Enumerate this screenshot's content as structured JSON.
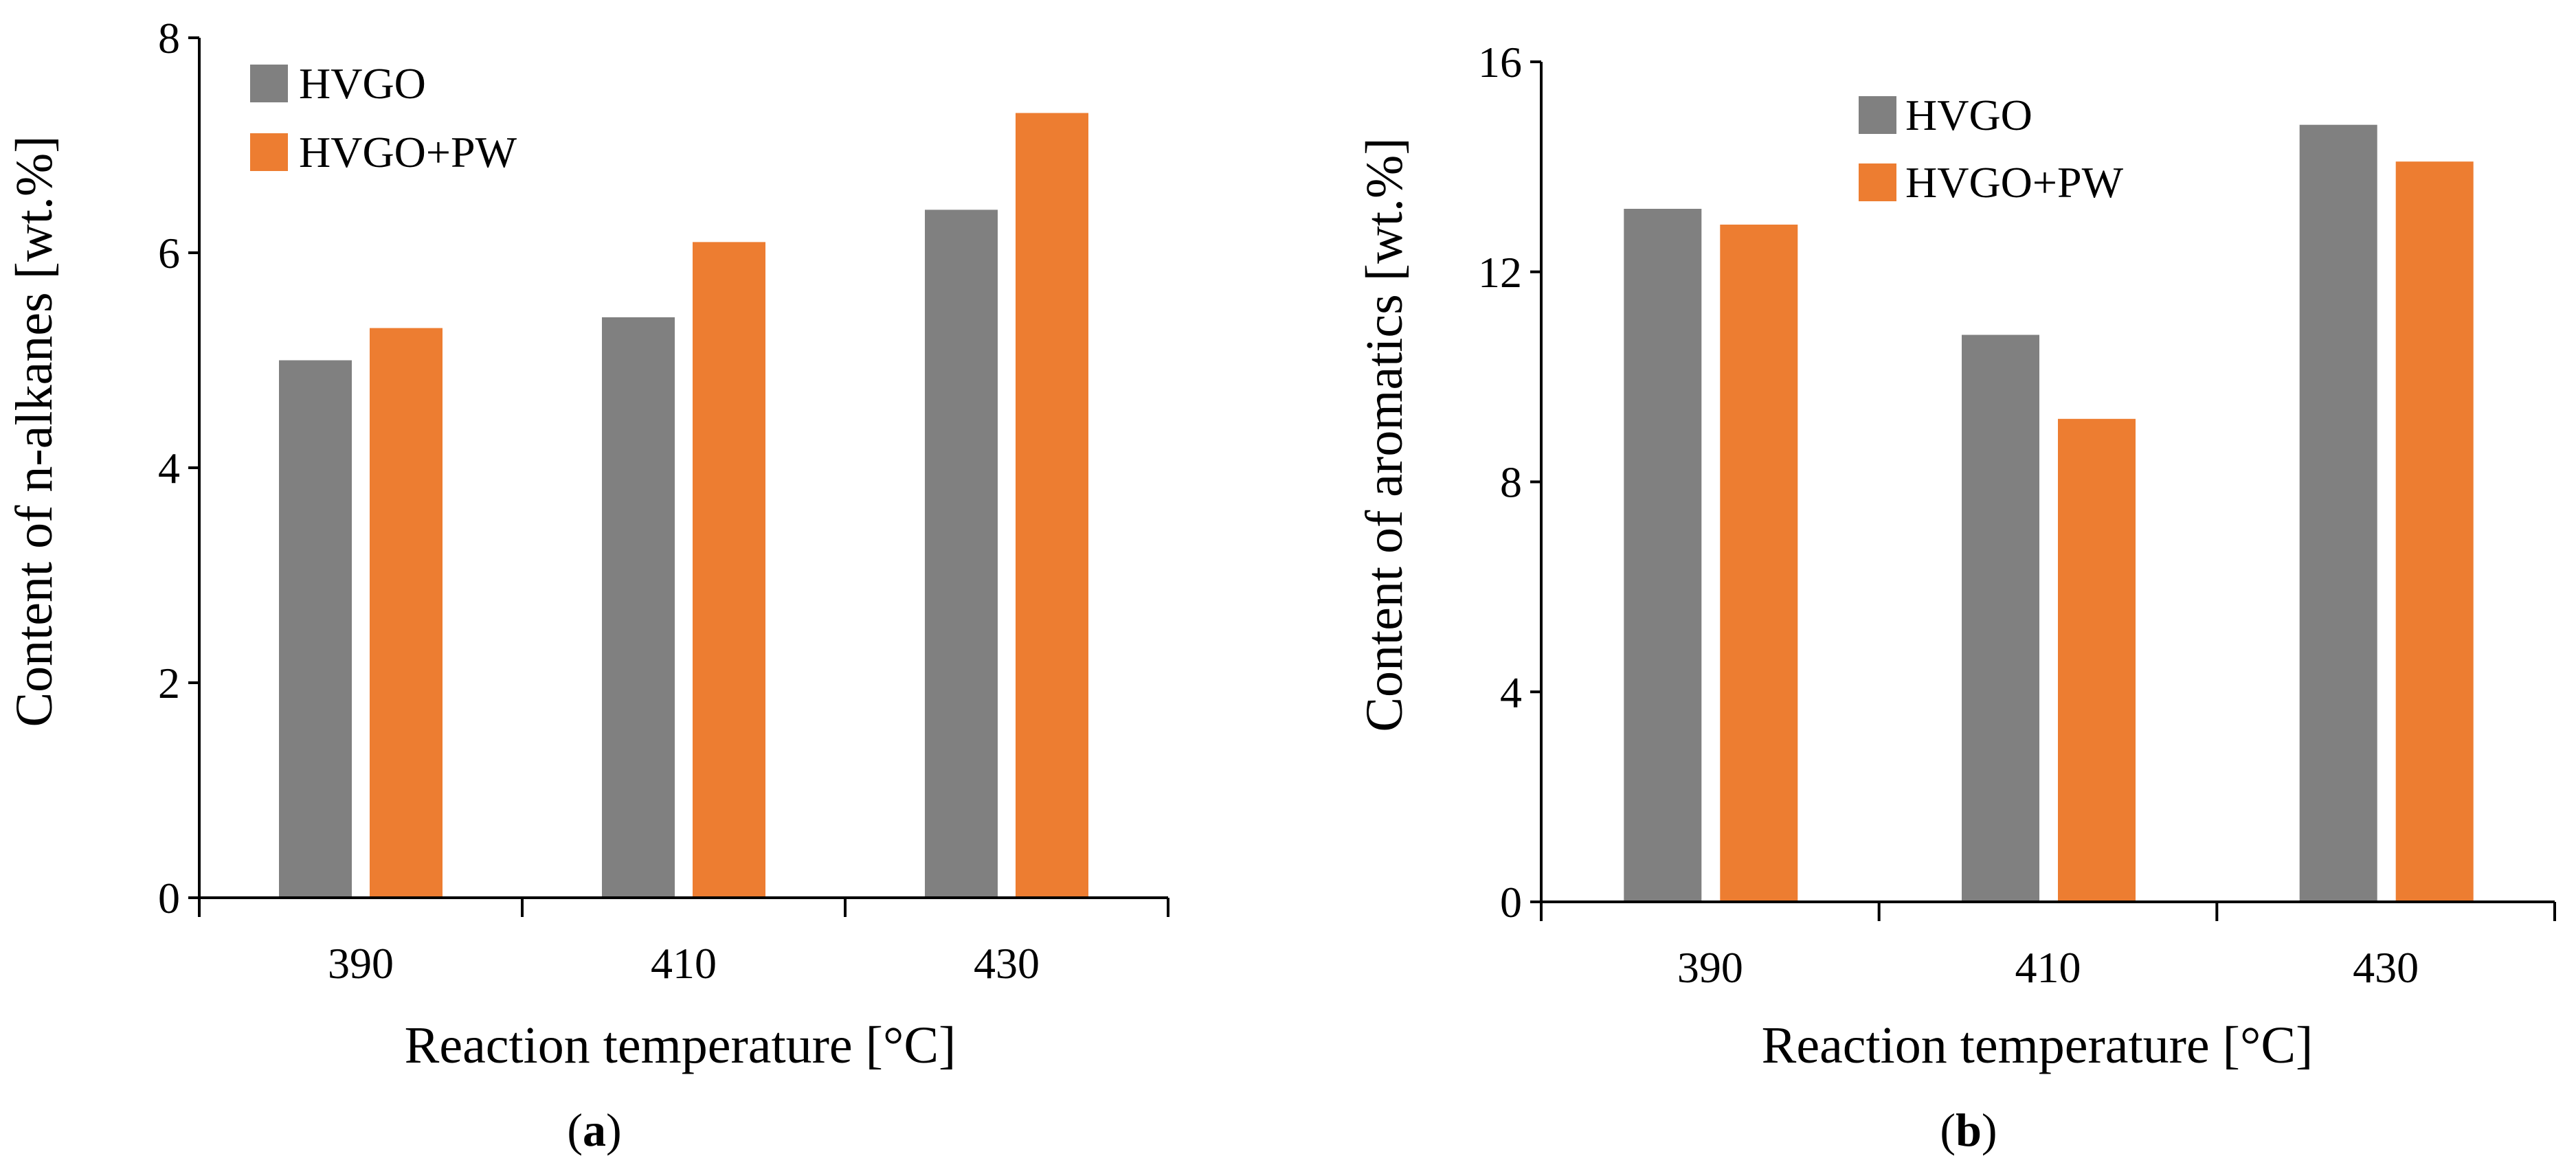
{
  "chart_data": [
    {
      "type": "bar",
      "panel_label": "(a)",
      "panel_letter": "a",
      "categories": [
        "390",
        "410",
        "430"
      ],
      "series": [
        {
          "name": "HVGO",
          "values": [
            5.0,
            5.4,
            6.4
          ],
          "color": "#808080"
        },
        {
          "name": "HVGO+PW",
          "values": [
            5.3,
            6.1,
            7.3
          ],
          "color": "#ED7D31"
        }
      ],
      "title": "",
      "xlabel": "Reaction temperature [°C]",
      "ylabel": "Content of n-alkanes [wt.%]",
      "ylim": [
        0,
        8
      ],
      "yticks": [
        0,
        2,
        4,
        6,
        8
      ],
      "grid": false,
      "legend_position": "top-left"
    },
    {
      "type": "bar",
      "panel_label": "(b)",
      "panel_letter": "b",
      "categories": [
        "390",
        "410",
        "430"
      ],
      "series": [
        {
          "name": "HVGO",
          "values": [
            13.2,
            10.8,
            14.8
          ],
          "color": "#808080"
        },
        {
          "name": "HVGO+PW",
          "values": [
            12.9,
            9.2,
            14.1
          ],
          "color": "#ED7D31"
        }
      ],
      "title": "",
      "xlabel": "Reaction temperature [°C]",
      "ylabel": "Content of aromatics [wt.%]",
      "ylim": [
        0,
        16
      ],
      "yticks": [
        0,
        4,
        8,
        12,
        16
      ],
      "grid": false,
      "legend_position": "top-center"
    }
  ]
}
